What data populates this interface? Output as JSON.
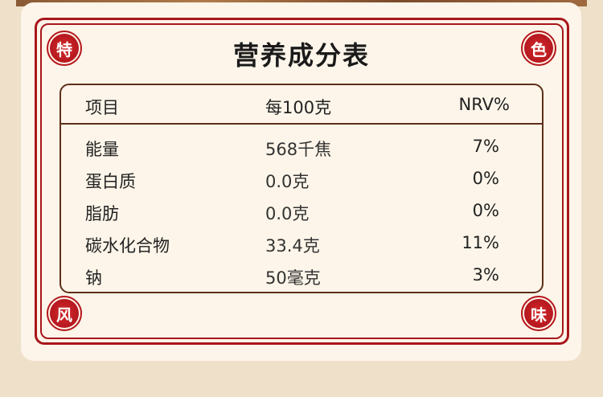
{
  "title": "营养成分表",
  "seals": [
    "特",
    "色",
    "风",
    "味"
  ],
  "colors": {
    "accent": "#a8161b",
    "border": "#5e2f1a",
    "background": "#fdf5e9"
  },
  "table": {
    "headers": [
      "项目",
      "每100克",
      "NRV%"
    ],
    "rows": [
      [
        "能量",
        "568千焦",
        "7%"
      ],
      [
        "蛋白质",
        "0.0克",
        "0%"
      ],
      [
        "脂肪",
        "0.0克",
        "0%"
      ],
      [
        "碳水化合物",
        "33.4克",
        "11%"
      ],
      [
        "钠",
        "50毫克",
        "3%"
      ]
    ]
  }
}
